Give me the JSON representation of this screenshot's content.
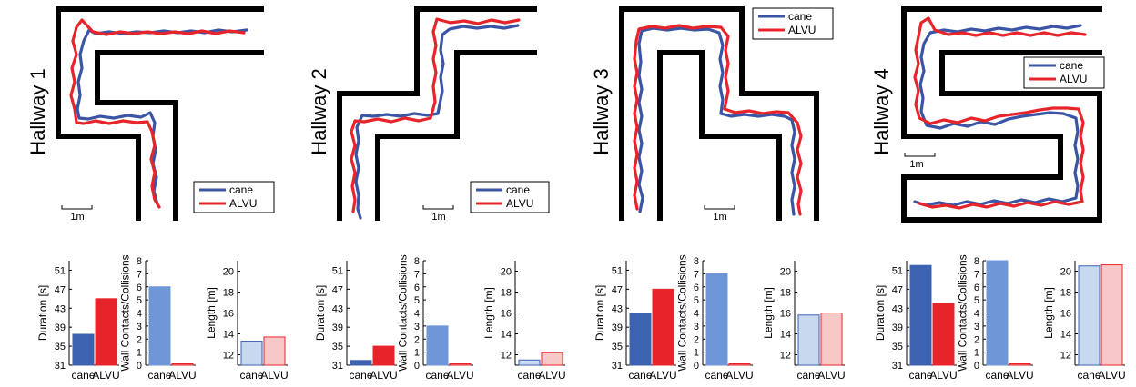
{
  "chart_data": [
    {
      "type": "line",
      "title": "Hallway 1",
      "series": [
        {
          "name": "cane",
          "color": "#3a55a5"
        },
        {
          "name": "ALVU",
          "color": "#e8242b"
        }
      ],
      "scale_label": "1m",
      "legend_position": "bottom-right"
    },
    {
      "type": "line",
      "title": "Hallway 2",
      "series": [
        {
          "name": "cane",
          "color": "#3a55a5"
        },
        {
          "name": "ALVU",
          "color": "#e8242b"
        }
      ],
      "scale_label": "1m",
      "legend_position": "bottom-right"
    },
    {
      "type": "line",
      "title": "Hallway 3",
      "series": [
        {
          "name": "cane",
          "color": "#3a55a5"
        },
        {
          "name": "ALVU",
          "color": "#e8242b"
        }
      ],
      "scale_label": "1m",
      "legend_position": "top-right"
    },
    {
      "type": "line",
      "title": "Hallway 4",
      "series": [
        {
          "name": "cane",
          "color": "#3a55a5"
        },
        {
          "name": "ALVU",
          "color": "#e8242b"
        }
      ],
      "scale_label": "1m",
      "legend_position": "middle-right"
    },
    {
      "type": "bar",
      "group": "Hallway 1",
      "ylabel": "Duration [s]",
      "ylim": [
        31,
        53
      ],
      "yticks": [
        31,
        35,
        39,
        43,
        47,
        51
      ],
      "categories": [
        "cane",
        "ALVU"
      ],
      "values": [
        37.5,
        45
      ],
      "colors": [
        "#3c62b0",
        "#e8242b"
      ],
      "strokes": [
        "#3c62b0",
        "#e8242b"
      ]
    },
    {
      "type": "bar",
      "group": "Hallway 1",
      "ylabel": "Wall Contacts/Collisions",
      "ylim": [
        0,
        8
      ],
      "yticks": [
        0,
        1,
        2,
        3,
        4,
        5,
        6,
        7,
        8
      ],
      "categories": [
        "cane",
        "ALVU"
      ],
      "values": [
        6,
        0
      ],
      "colors": [
        "#6f97d8",
        "#f07a7a"
      ],
      "strokes": [
        "#6f97d8",
        "#e8242b"
      ]
    },
    {
      "type": "bar",
      "group": "Hallway 1",
      "ylabel": "Length [m]",
      "ylim": [
        11,
        21
      ],
      "yticks": [
        12,
        14,
        16,
        18,
        20
      ],
      "categories": [
        "cane",
        "ALVU"
      ],
      "values": [
        13.3,
        13.7
      ],
      "colors": [
        "#c8d8ef",
        "#f8c8c8"
      ],
      "strokes": [
        "#3c62b0",
        "#e8242b"
      ]
    },
    {
      "type": "bar",
      "group": "Hallway 2",
      "ylabel": "Duration [s]",
      "ylim": [
        31,
        53
      ],
      "yticks": [
        31,
        35,
        39,
        43,
        47,
        51
      ],
      "categories": [
        "cane",
        "ALVU"
      ],
      "values": [
        32,
        35
      ],
      "colors": [
        "#3c62b0",
        "#e8242b"
      ],
      "strokes": [
        "#3c62b0",
        "#e8242b"
      ]
    },
    {
      "type": "bar",
      "group": "Hallway 2",
      "ylabel": "Wall Contacts/Collisions",
      "ylim": [
        0,
        8
      ],
      "yticks": [
        0,
        1,
        2,
        3,
        4,
        5,
        6,
        7,
        8
      ],
      "categories": [
        "cane",
        "ALVU"
      ],
      "values": [
        3,
        0
      ],
      "colors": [
        "#6f97d8",
        "#f07a7a"
      ],
      "strokes": [
        "#6f97d8",
        "#e8242b"
      ]
    },
    {
      "type": "bar",
      "group": "Hallway 2",
      "ylabel": "Length [m]",
      "ylim": [
        11,
        21
      ],
      "yticks": [
        12,
        14,
        16,
        18,
        20
      ],
      "categories": [
        "cane",
        "ALVU"
      ],
      "values": [
        11.5,
        12.2
      ],
      "colors": [
        "#c8d8ef",
        "#f8c8c8"
      ],
      "strokes": [
        "#3c62b0",
        "#e8242b"
      ]
    },
    {
      "type": "bar",
      "group": "Hallway 3",
      "ylabel": "Duration [s]",
      "ylim": [
        31,
        53
      ],
      "yticks": [
        31,
        35,
        39,
        43,
        47,
        51
      ],
      "categories": [
        "cane",
        "ALVU"
      ],
      "values": [
        42,
        47
      ],
      "colors": [
        "#3c62b0",
        "#e8242b"
      ],
      "strokes": [
        "#3c62b0",
        "#e8242b"
      ]
    },
    {
      "type": "bar",
      "group": "Hallway 3",
      "ylabel": "Wall Contacts/Collisions",
      "ylim": [
        0,
        8
      ],
      "yticks": [
        0,
        1,
        2,
        3,
        4,
        5,
        6,
        7,
        8
      ],
      "categories": [
        "cane",
        "ALVU"
      ],
      "values": [
        7,
        0
      ],
      "colors": [
        "#6f97d8",
        "#f07a7a"
      ],
      "strokes": [
        "#6f97d8",
        "#e8242b"
      ]
    },
    {
      "type": "bar",
      "group": "Hallway 3",
      "ylabel": "Length [m]",
      "ylim": [
        11,
        21
      ],
      "yticks": [
        12,
        14,
        16,
        18,
        20
      ],
      "categories": [
        "cane",
        "ALVU"
      ],
      "values": [
        15.8,
        16
      ],
      "colors": [
        "#c8d8ef",
        "#f8c8c8"
      ],
      "strokes": [
        "#3c62b0",
        "#e8242b"
      ]
    },
    {
      "type": "bar",
      "group": "Hallway 4",
      "ylabel": "Duration [s]",
      "ylim": [
        31,
        53
      ],
      "yticks": [
        31,
        35,
        39,
        43,
        47,
        51
      ],
      "categories": [
        "cane",
        "ALVU"
      ],
      "values": [
        52,
        44
      ],
      "colors": [
        "#3c62b0",
        "#e8242b"
      ],
      "strokes": [
        "#3c62b0",
        "#e8242b"
      ]
    },
    {
      "type": "bar",
      "group": "Hallway 4",
      "ylabel": "Wall Contacts/Collisions",
      "ylim": [
        0,
        8
      ],
      "yticks": [
        0,
        1,
        2,
        3,
        4,
        5,
        6,
        7,
        8
      ],
      "categories": [
        "cane",
        "ALVU"
      ],
      "values": [
        8,
        0
      ],
      "colors": [
        "#6f97d8",
        "#f07a7a"
      ],
      "strokes": [
        "#6f97d8",
        "#e8242b"
      ]
    },
    {
      "type": "bar",
      "group": "Hallway 4",
      "ylabel": "Length [m]",
      "ylim": [
        11,
        21
      ],
      "yticks": [
        12,
        14,
        16,
        18,
        20
      ],
      "categories": [
        "cane",
        "ALVU"
      ],
      "values": [
        20.5,
        20.6
      ],
      "colors": [
        "#c8d8ef",
        "#f8c8c8"
      ],
      "strokes": [
        "#3c62b0",
        "#e8242b"
      ]
    }
  ]
}
